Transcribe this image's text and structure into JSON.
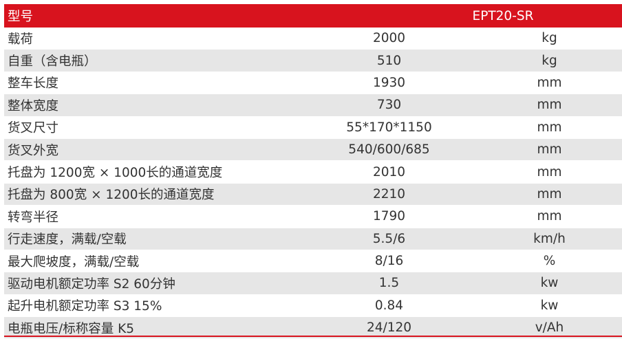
{
  "table": {
    "header": {
      "label": "型号",
      "model": "EPT20-SR"
    },
    "rows": [
      {
        "name": "载荷",
        "value": "2000",
        "unit": "kg"
      },
      {
        "name": "自重（含电瓶）",
        "value": "510",
        "unit": "kg"
      },
      {
        "name": "整车长度",
        "value": "1930",
        "unit": "mm"
      },
      {
        "name": "整体宽度",
        "value": "730",
        "unit": "mm"
      },
      {
        "name": "货叉尺寸",
        "value": "55*170*1150",
        "unit": "mm"
      },
      {
        "name": "货叉外宽",
        "value": "540/600/685",
        "unit": "mm"
      },
      {
        "name": "托盘为 1200宽 × 1000长的通道宽度",
        "value": "2010",
        "unit": "mm"
      },
      {
        "name": "托盘为 800宽 × 1200长的通道宽度",
        "value": "2210",
        "unit": "mm"
      },
      {
        "name": "转弯半径",
        "value": "1790",
        "unit": "mm"
      },
      {
        "name": "行走速度，满载/空载",
        "value": "5.5/6",
        "unit": "km/h"
      },
      {
        "name": "最大爬坡度，满载/空载",
        "value": "8/16",
        "unit": "%"
      },
      {
        "name": "驱动电机额定功率 S2 60分钟",
        "value": "1.5",
        "unit": "kw"
      },
      {
        "name": "起升电机额定功率 S3 15%",
        "value": "0.84",
        "unit": "kw"
      },
      {
        "name": "电瓶电压/标称容量 K5",
        "value": "24/120",
        "unit": "v/Ah"
      }
    ]
  },
  "colors": {
    "header_bg": "#d8131e",
    "stripe": "#e6e6e6",
    "text": "#333333"
  }
}
